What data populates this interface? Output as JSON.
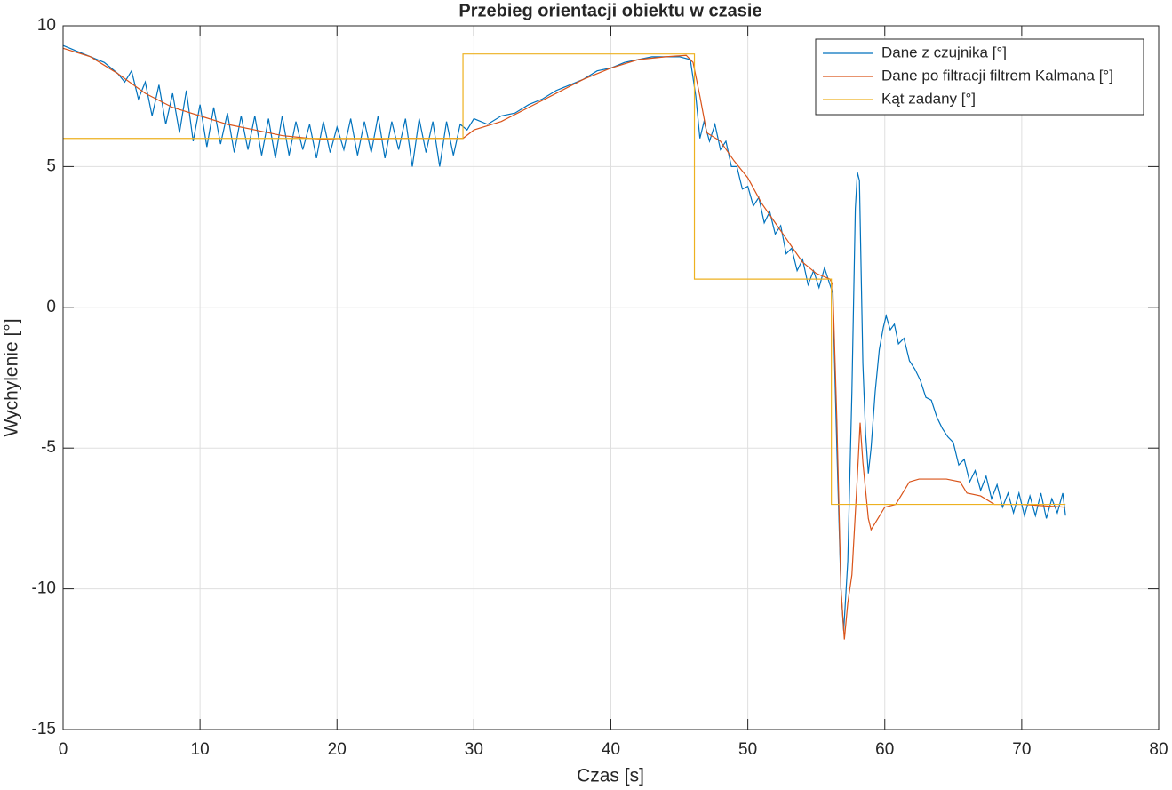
{
  "chart_data": {
    "type": "line",
    "title": "Przebieg orientacji obiektu w czasie",
    "x_label": "Czas [s]",
    "y_label": "Wychylenie [°]",
    "xlim": [
      0,
      80
    ],
    "xticks": [
      0,
      10,
      20,
      30,
      40,
      50,
      60,
      70,
      80
    ],
    "ylim": [
      -15,
      10
    ],
    "yticks": [
      -15,
      -10,
      -5,
      0,
      5,
      10
    ],
    "grid": true,
    "legend": "top-right",
    "series": [
      {
        "name": "Dane z czujnika [°]",
        "color": "#0072bd",
        "x": [
          0,
          0.5,
          1,
          1.5,
          2,
          2.5,
          3,
          3.5,
          4,
          4.5,
          5,
          5.5,
          6,
          6.5,
          7,
          7.5,
          8,
          8.5,
          9,
          9.5,
          10,
          10.5,
          11,
          11.5,
          12,
          12.5,
          13,
          13.5,
          14,
          14.5,
          15,
          15.5,
          16,
          16.5,
          17,
          17.5,
          18,
          18.5,
          19,
          19.5,
          20,
          20.5,
          21,
          21.5,
          22,
          22.5,
          23,
          23.5,
          24,
          24.5,
          25,
          25.5,
          26,
          26.5,
          27,
          27.5,
          28,
          28.5,
          29,
          29.5,
          30,
          31,
          32,
          33,
          34,
          35,
          36,
          37,
          38,
          39,
          40,
          41,
          42,
          43,
          44,
          45,
          45.8,
          46.2,
          46.5,
          46.8,
          47.2,
          47.6,
          48,
          48.4,
          48.8,
          49.2,
          49.6,
          50,
          50.4,
          50.8,
          51.2,
          51.6,
          52,
          52.4,
          52.8,
          53.2,
          53.6,
          54,
          54.4,
          54.8,
          55.2,
          55.6,
          56,
          56.2,
          56.5,
          56.8,
          57,
          57.3,
          57.6,
          57.85,
          58,
          58.15,
          58.4,
          58.6,
          58.8,
          59,
          59.3,
          59.6,
          59.9,
          60.1,
          60.4,
          60.7,
          61,
          61.4,
          61.8,
          62.2,
          62.6,
          63,
          63.4,
          63.8,
          64.2,
          64.6,
          65,
          65.4,
          65.8,
          66.2,
          66.6,
          67,
          67.4,
          67.8,
          68.2,
          68.6,
          69,
          69.4,
          69.8,
          70.2,
          70.6,
          71,
          71.4,
          71.8,
          72.2,
          72.6,
          73,
          73.2
        ],
        "values": [
          9.3,
          9.2,
          9.1,
          9.0,
          8.9,
          8.8,
          8.7,
          8.5,
          8.3,
          8.0,
          8.4,
          7.4,
          8.0,
          6.8,
          7.9,
          6.5,
          7.6,
          6.2,
          7.7,
          5.9,
          7.2,
          5.7,
          7.1,
          5.8,
          6.9,
          5.5,
          6.8,
          5.6,
          6.8,
          5.4,
          6.7,
          5.3,
          6.8,
          5.4,
          6.6,
          5.6,
          6.5,
          5.3,
          6.6,
          5.5,
          6.4,
          5.6,
          6.7,
          5.4,
          6.6,
          5.5,
          6.8,
          5.3,
          6.6,
          5.6,
          6.7,
          5.0,
          6.7,
          5.5,
          6.6,
          5.0,
          6.6,
          5.4,
          6.5,
          6.3,
          6.7,
          6.5,
          6.8,
          6.9,
          7.2,
          7.4,
          7.7,
          7.9,
          8.1,
          8.4,
          8.5,
          8.7,
          8.8,
          8.9,
          8.9,
          8.9,
          8.8,
          7.5,
          6.0,
          6.6,
          5.9,
          6.5,
          5.6,
          5.9,
          5.0,
          5.0,
          4.2,
          4.3,
          3.6,
          3.9,
          3.0,
          3.4,
          2.6,
          2.9,
          1.9,
          2.1,
          1.3,
          1.7,
          0.8,
          1.3,
          0.7,
          1.4,
          0.8,
          0.5,
          -5,
          -10,
          -11.5,
          -9,
          -3,
          3.5,
          4.8,
          4.5,
          -2,
          -4.5,
          -5.9,
          -5.0,
          -3,
          -1.5,
          -0.7,
          -0.3,
          -0.8,
          -0.6,
          -1.3,
          -1.1,
          -1.9,
          -2.2,
          -2.6,
          -3.2,
          -3.3,
          -3.9,
          -4.3,
          -4.6,
          -4.8,
          -5.6,
          -5.4,
          -6.2,
          -5.8,
          -6.5,
          -6.0,
          -6.8,
          -6.3,
          -7.1,
          -6.6,
          -7.3,
          -6.6,
          -7.4,
          -6.7,
          -7.4,
          -6.6,
          -7.5,
          -6.8,
          -7.3,
          -6.6,
          -7.4
        ]
      },
      {
        "name": "Dane po filtracji filtrem Kalmana [°]",
        "color": "#d95319",
        "x": [
          0,
          2,
          4,
          6,
          8,
          10,
          12,
          14,
          16,
          18,
          20,
          22,
          24,
          26,
          28,
          29.2,
          30,
          32,
          34,
          36,
          38,
          40,
          42,
          44,
          45.5,
          46,
          46.5,
          47,
          48,
          49,
          50,
          51,
          52,
          53,
          54,
          55,
          56,
          56.2,
          56.5,
          56.8,
          57.05,
          57.3,
          57.6,
          58,
          58.2,
          58.4,
          58.8,
          59,
          59.5,
          60,
          60.8,
          61.3,
          61.8,
          62.5,
          64.5,
          65.5,
          66,
          67,
          68,
          70,
          73.2
        ],
        "values": [
          9.2,
          8.9,
          8.3,
          7.6,
          7.1,
          6.8,
          6.5,
          6.3,
          6.1,
          6.0,
          5.95,
          5.95,
          6.0,
          6.0,
          6.0,
          6.0,
          6.3,
          6.6,
          7.1,
          7.6,
          8.1,
          8.5,
          8.8,
          8.9,
          8.95,
          8.7,
          7.5,
          6.2,
          5.9,
          5.2,
          4.6,
          3.7,
          3.0,
          2.3,
          1.6,
          1.2,
          1.0,
          0.8,
          -4,
          -10,
          -11.8,
          -10.5,
          -9.5,
          -6,
          -4.1,
          -5.5,
          -7.5,
          -7.9,
          -7.5,
          -7.1,
          -7.0,
          -6.6,
          -6.2,
          -6.1,
          -6.1,
          -6.2,
          -6.6,
          -6.7,
          -7.0,
          -7.0,
          -7.1
        ]
      },
      {
        "name": "Kąt zadany [°]",
        "color": "#edb120",
        "x": [
          0,
          29.2,
          29.2,
          46.1,
          46.1,
          56.1,
          56.1,
          73.2
        ],
        "values": [
          6,
          6,
          9,
          9,
          1,
          1,
          -7,
          -7
        ]
      }
    ]
  }
}
